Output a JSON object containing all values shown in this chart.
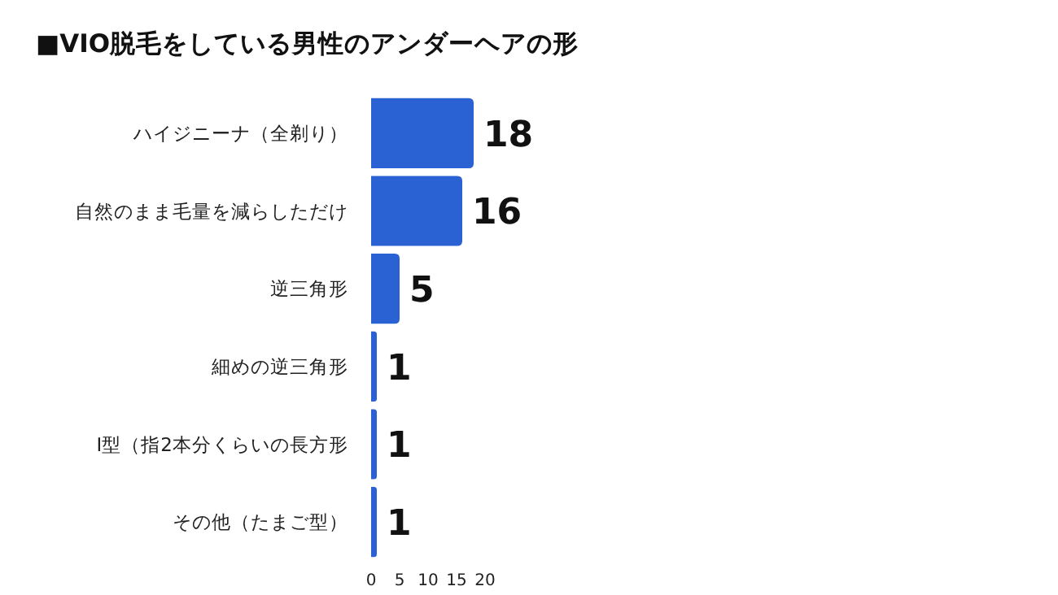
{
  "chart_data": {
    "type": "bar",
    "orientation": "horizontal",
    "title": "■VIO脱毛をしている男性のアンダーヘアの形",
    "categories": [
      "ハイジニーナ（全剃り）",
      "自然のまま毛量を減らしただけ",
      "逆三角形",
      "細めの逆三角形",
      "I型（指2本分くらいの長方形",
      "その他（たまご型）"
    ],
    "values": [
      18,
      16,
      5,
      1,
      1,
      1
    ],
    "color": "#2a62d4",
    "xlim": [
      0,
      20
    ],
    "xticks": [
      0,
      5,
      10,
      15,
      20
    ],
    "data_labels": true,
    "grid": false
  }
}
